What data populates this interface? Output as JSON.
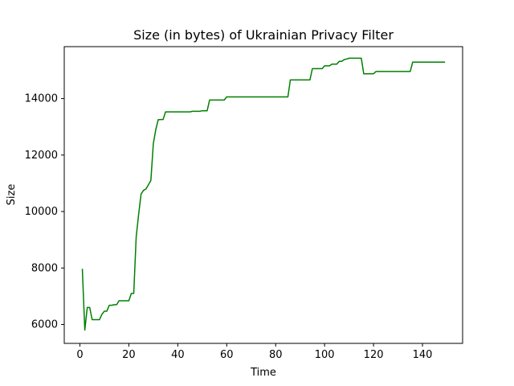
{
  "chart_data": {
    "type": "line",
    "title": "Size (in bytes) of Ukrainian Privacy Filter",
    "xlabel": "Time",
    "ylabel": "Size",
    "xlim": [
      -6.4,
      156.4
    ],
    "ylim": [
      5330,
      15840
    ],
    "xticks": [
      0,
      20,
      40,
      60,
      80,
      100,
      120,
      140
    ],
    "yticks": [
      6000,
      8000,
      10000,
      12000,
      14000
    ],
    "xtick_labels": [
      "0",
      "20",
      "40",
      "60",
      "80",
      "100",
      "120",
      "140"
    ],
    "ytick_labels": [
      "6000",
      "8000",
      "10000",
      "12000",
      "14000"
    ],
    "grid": false,
    "legend": "none",
    "series": [
      {
        "color": "#008000",
        "x": [
          1,
          2,
          3,
          4,
          5,
          6,
          7,
          8,
          9,
          10,
          11,
          12,
          13,
          14,
          15,
          16,
          17,
          18,
          19,
          20,
          21,
          22,
          23,
          24,
          25,
          26,
          27,
          28,
          29,
          30,
          31,
          32,
          33,
          34,
          35,
          36,
          37,
          38,
          39,
          40,
          41,
          42,
          43,
          44,
          45,
          46,
          47,
          48,
          49,
          50,
          51,
          52,
          53,
          54,
          55,
          56,
          57,
          58,
          59,
          60,
          61,
          62,
          63,
          64,
          65,
          66,
          67,
          68,
          69,
          70,
          71,
          72,
          73,
          74,
          75,
          76,
          77,
          78,
          79,
          80,
          81,
          82,
          83,
          84,
          85,
          86,
          87,
          88,
          89,
          90,
          91,
          92,
          93,
          94,
          95,
          96,
          97,
          98,
          99,
          100,
          101,
          102,
          103,
          104,
          105,
          106,
          107,
          108,
          109,
          110,
          111,
          112,
          113,
          114,
          115,
          116,
          117,
          118,
          119,
          120,
          121,
          122,
          123,
          124,
          125,
          126,
          127,
          128,
          129,
          130,
          131,
          132,
          133,
          134,
          135,
          136,
          137,
          138,
          139,
          140,
          141,
          142,
          143,
          144,
          145,
          146,
          147,
          148,
          149
        ],
        "y": [
          7950,
          5800,
          6600,
          6600,
          6170,
          6170,
          6170,
          6170,
          6360,
          6470,
          6470,
          6680,
          6680,
          6700,
          6700,
          6840,
          6840,
          6840,
          6840,
          6840,
          7100,
          7100,
          9100,
          9900,
          10620,
          10750,
          10800,
          10950,
          11100,
          12400,
          12900,
          13250,
          13260,
          13260,
          13530,
          13530,
          13530,
          13530,
          13530,
          13530,
          13530,
          13530,
          13530,
          13530,
          13530,
          13550,
          13550,
          13550,
          13550,
          13570,
          13570,
          13570,
          13950,
          13950,
          13950,
          13950,
          13950,
          13950,
          13950,
          14060,
          14060,
          14060,
          14060,
          14060,
          14060,
          14060,
          14060,
          14060,
          14060,
          14060,
          14060,
          14060,
          14060,
          14060,
          14060,
          14060,
          14060,
          14060,
          14060,
          14060,
          14060,
          14060,
          14060,
          14060,
          14060,
          14660,
          14660,
          14660,
          14660,
          14660,
          14660,
          14660,
          14660,
          14660,
          15060,
          15060,
          15060,
          15060,
          15060,
          15160,
          15160,
          15160,
          15220,
          15220,
          15220,
          15320,
          15320,
          15380,
          15400,
          15430,
          15430,
          15430,
          15430,
          15430,
          15430,
          14880,
          14880,
          14880,
          14880,
          14880,
          14960,
          14960,
          14960,
          14960,
          14960,
          14960,
          14960,
          14960,
          14960,
          14960,
          14960,
          14960,
          14960,
          14960,
          14960,
          15290,
          15290,
          15290,
          15290,
          15290,
          15290,
          15290,
          15290,
          15290,
          15290,
          15290,
          15290,
          15290,
          15290
        ]
      }
    ]
  }
}
